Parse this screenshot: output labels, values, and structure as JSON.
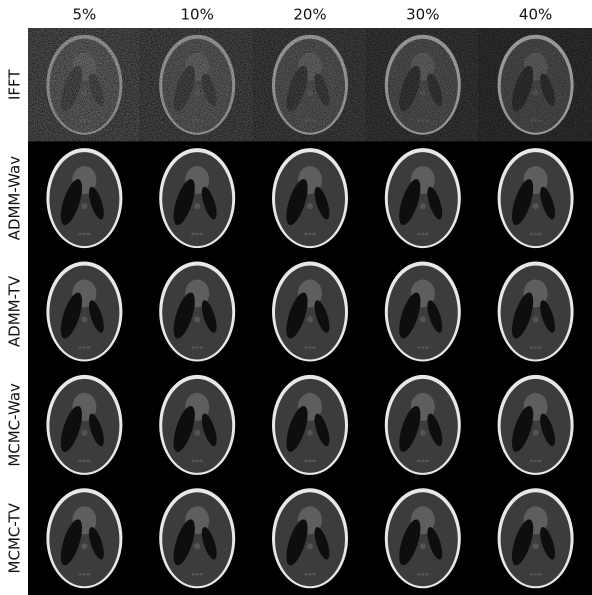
{
  "columns": [
    "5%",
    "10%",
    "20%",
    "30%",
    "40%"
  ],
  "rows": [
    "IFFT",
    "ADMM-Wav",
    "ADMM-TV",
    "MCMC-Wav",
    "MCMC-TV"
  ]
}
